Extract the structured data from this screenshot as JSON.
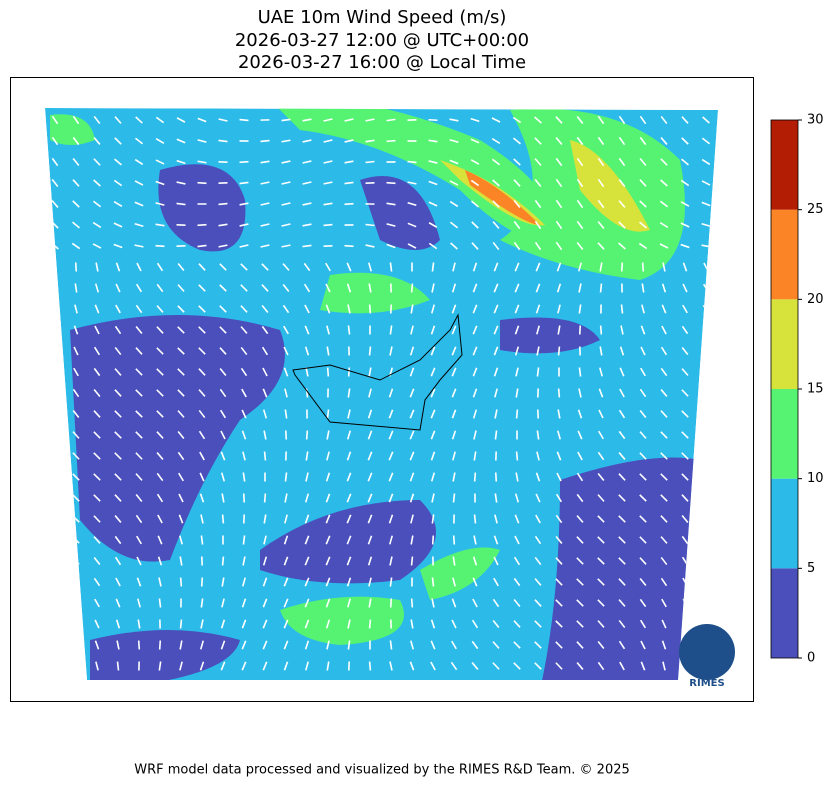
{
  "header": {
    "title": [
      "UAE 10m Wind Speed (m/s)",
      "2026-03-27 12:00 @ UTC+00:00",
      "2026-03-27 16:00 @ Local Time"
    ]
  },
  "colorbar": {
    "lim": [
      0,
      30
    ],
    "ticks": [
      0,
      5,
      10,
      15,
      20,
      25,
      30
    ],
    "colors": [
      "#4a4fbb",
      "#2cbbe9",
      "#56f373",
      "#d7e33b",
      "#fb8526",
      "#b31d04"
    ]
  },
  "logo": {
    "label": "RIMES"
  },
  "footer": "WRF model data processed and visualized by the RIMES R&D Team. © 2025"
}
